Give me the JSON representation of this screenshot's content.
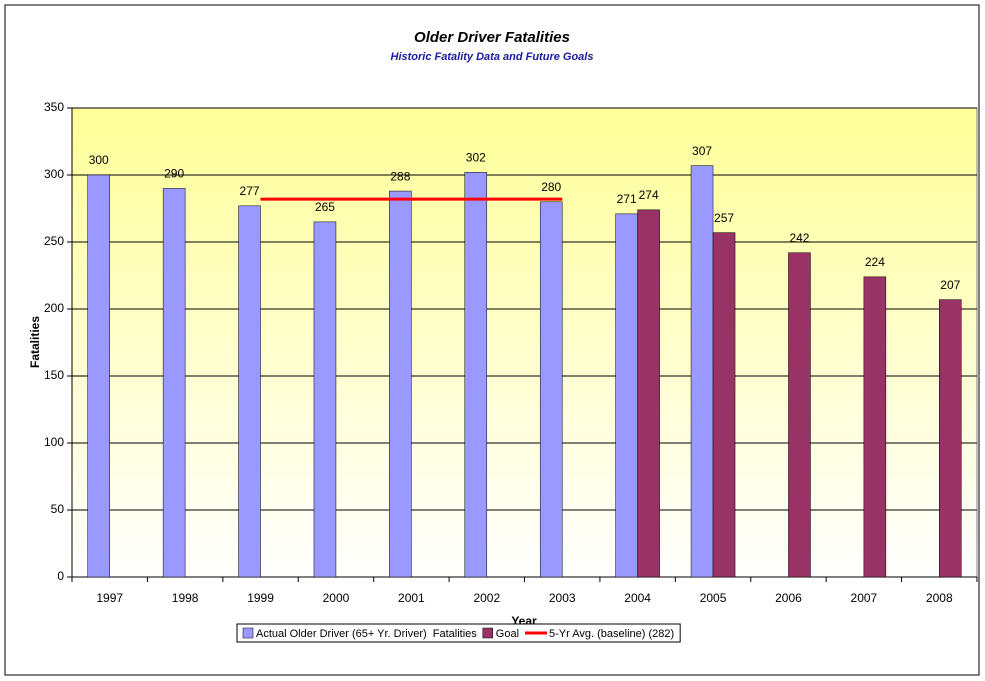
{
  "chart_data": {
    "type": "bar",
    "title": "Older Driver Fatalities",
    "subtitle": "Historic Fatality Data and Future Goals",
    "x_label": "Year",
    "y_label": "Fatalities",
    "categories": [
      "1997",
      "1998",
      "1999",
      "2000",
      "2001",
      "2002",
      "2003",
      "2004",
      "2005",
      "2006",
      "2007",
      "2008"
    ],
    "series": [
      {
        "name": "Actual Older Driver (65+ Yr. Driver)  Fatalities",
        "type": "bar",
        "color": "#9999ff",
        "values": [
          300,
          290,
          277,
          265,
          288,
          302,
          280,
          271,
          307,
          null,
          null,
          null
        ]
      },
      {
        "name": "Goal",
        "type": "bar",
        "color": "#993366",
        "values": [
          null,
          null,
          null,
          null,
          null,
          null,
          null,
          274,
          257,
          242,
          224,
          207
        ]
      },
      {
        "name": "5-Yr Avg. (baseline) (282)",
        "type": "line",
        "color": "#ff0000",
        "values": [
          null,
          null,
          282,
          282,
          282,
          282,
          282,
          null,
          null,
          null,
          null,
          null
        ]
      }
    ],
    "ylim": [
      0,
      350
    ],
    "yticks": [
      0,
      50,
      100,
      150,
      200,
      250,
      300,
      350
    ],
    "grid": true,
    "legend": "bottom"
  }
}
